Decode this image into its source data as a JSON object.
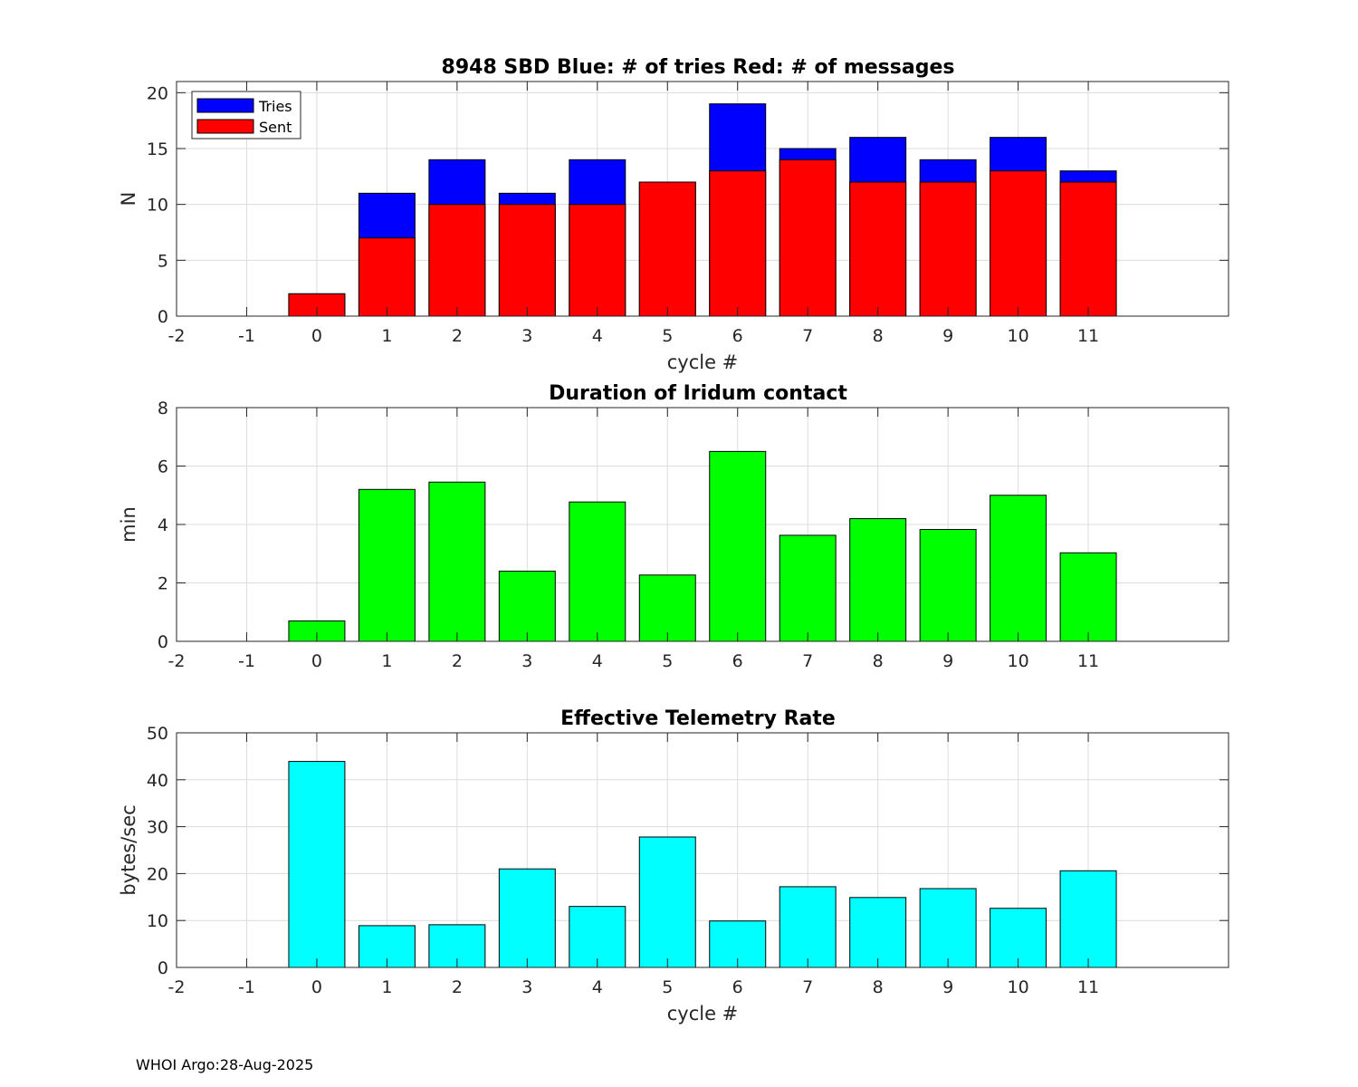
{
  "chart_data": [
    {
      "type": "bar",
      "title": "8948 SBD  Blue: # of tries   Red: # of messages",
      "xlabel": "cycle #",
      "ylabel": "N",
      "xlim": [
        -2,
        13
      ],
      "ylim": [
        0,
        21
      ],
      "xticks": [
        -2,
        -1,
        0,
        1,
        2,
        3,
        4,
        5,
        6,
        7,
        8,
        9,
        10,
        11
      ],
      "yticks": [
        0,
        5,
        10,
        15,
        20
      ],
      "grid": true,
      "legend": {
        "placement": "top-left",
        "entries": [
          "Tries",
          "Sent"
        ]
      },
      "categories": [
        0,
        1,
        2,
        3,
        4,
        5,
        6,
        7,
        8,
        9,
        10,
        11
      ],
      "series": [
        {
          "name": "Tries",
          "color": "#0000ff",
          "values": [
            2,
            11,
            14,
            11,
            14,
            12,
            19,
            15,
            16,
            14,
            16,
            13
          ]
        },
        {
          "name": "Sent",
          "color": "#ff0000",
          "values": [
            2,
            7,
            10,
            10,
            10,
            12,
            13,
            14,
            12,
            12,
            13,
            12
          ]
        }
      ]
    },
    {
      "type": "bar",
      "title": "Duration of Iridum contact",
      "xlabel": "",
      "ylabel": "min",
      "xlim": [
        -2,
        13
      ],
      "ylim": [
        0,
        8
      ],
      "xticks": [
        -2,
        -1,
        0,
        1,
        2,
        3,
        4,
        5,
        6,
        7,
        8,
        9,
        10,
        11
      ],
      "yticks": [
        0,
        2,
        4,
        6,
        8
      ],
      "grid": true,
      "categories": [
        0,
        1,
        2,
        3,
        4,
        5,
        6,
        7,
        8,
        9,
        10,
        11
      ],
      "series": [
        {
          "name": "Duration",
          "color": "#00ff00",
          "values": [
            0.7,
            5.2,
            5.45,
            2.4,
            4.77,
            2.27,
            6.5,
            3.63,
            4.2,
            3.83,
            5.0,
            3.03
          ]
        }
      ]
    },
    {
      "type": "bar",
      "title": "Effective Telemetry Rate",
      "xlabel": "cycle #",
      "ylabel": "bytes/sec",
      "xlim": [
        -2,
        13
      ],
      "ylim": [
        0,
        50
      ],
      "xticks": [
        -2,
        -1,
        0,
        1,
        2,
        3,
        4,
        5,
        6,
        7,
        8,
        9,
        10,
        11
      ],
      "yticks": [
        0,
        10,
        20,
        30,
        40,
        50
      ],
      "grid": true,
      "categories": [
        0,
        1,
        2,
        3,
        4,
        5,
        6,
        7,
        8,
        9,
        10,
        11
      ],
      "series": [
        {
          "name": "Rate",
          "color": "#00ffff",
          "values": [
            43.9,
            8.9,
            9.1,
            21.0,
            13.0,
            27.8,
            9.9,
            17.2,
            14.9,
            16.8,
            12.6,
            20.6
          ]
        }
      ]
    }
  ],
  "footer": "WHOI Argo:28-Aug-2025"
}
